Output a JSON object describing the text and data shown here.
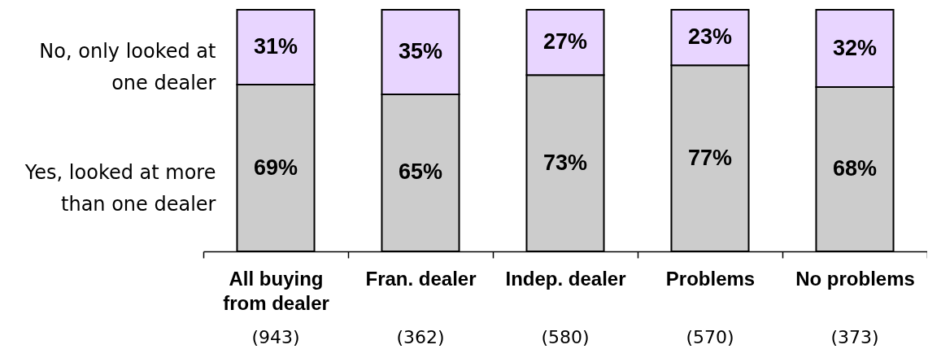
{
  "chart_data": {
    "type": "bar",
    "stacked": true,
    "legend": "left",
    "tick_labels": "x",
    "ylim": [
      0,
      100
    ],
    "categories": [
      "All buying from dealer",
      "Fran. dealer",
      "Indep. dealer",
      "Problems",
      "No problems"
    ],
    "series": [
      {
        "name": "Yes, looked at more than one dealer",
        "color": "#cccccc",
        "values": [
          69,
          65,
          73,
          77,
          68
        ],
        "value_labels": [
          "69%",
          "65%",
          "73%",
          "77%",
          "68%"
        ]
      },
      {
        "name": "No, only looked at one dealer",
        "color": "#e8d5ff",
        "values": [
          31,
          35,
          27,
          23,
          32
        ],
        "value_labels": [
          "31%",
          "35%",
          "27%",
          "23%",
          "32%"
        ]
      }
    ],
    "annotations": [
      "(943)",
      "(362)",
      "(580)",
      "(570)",
      "(373)"
    ]
  }
}
